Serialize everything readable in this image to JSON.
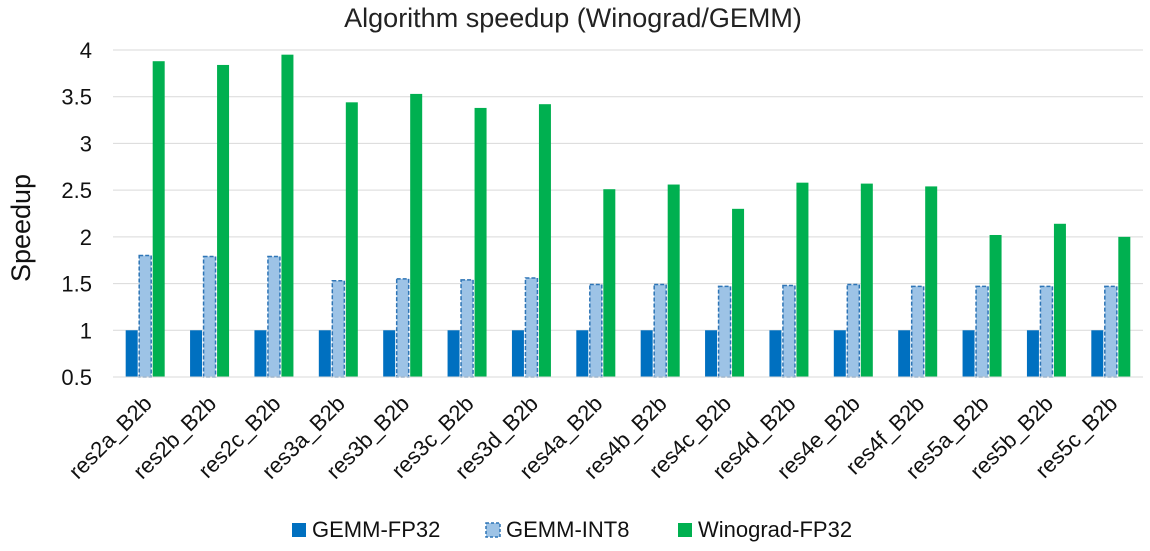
{
  "chart_data": {
    "type": "bar",
    "title": "Algorithm speedup (Winograd/GEMM)",
    "xlabel": "",
    "ylabel": "Speedup",
    "ylim": [
      0.5,
      4
    ],
    "yticks": [
      0.5,
      1,
      1.5,
      2,
      2.5,
      3,
      3.5,
      4
    ],
    "grid": true,
    "legend_position": "bottom",
    "categories": [
      "res2a_B2b",
      "res2b_B2b",
      "res2c_B2b",
      "res3a_B2b",
      "res3b_B2b",
      "res3c_B2b",
      "res3d_B2b",
      "res4a_B2b",
      "res4b_B2b",
      "res4c_B2b",
      "res4d_B2b",
      "res4e_B2b",
      "res4f_B2b",
      "res5a_B2b",
      "res5b_B2b",
      "res5c_B2b"
    ],
    "series": [
      {
        "name": "GEMM-FP32",
        "color": "#0070C0",
        "style": "solid",
        "values": [
          1,
          1,
          1,
          1,
          1,
          1,
          1,
          1,
          1,
          1,
          1,
          1,
          1,
          1,
          1,
          1
        ]
      },
      {
        "name": "GEMM-INT8",
        "color": "#9DC3E6",
        "style": "dashed",
        "values": [
          1.8,
          1.79,
          1.79,
          1.53,
          1.55,
          1.54,
          1.56,
          1.49,
          1.49,
          1.47,
          1.48,
          1.49,
          1.47,
          1.47,
          1.47,
          1.47
        ]
      },
      {
        "name": "Winograd-FP32",
        "color": "#00B050",
        "style": "solid",
        "values": [
          3.88,
          3.84,
          3.95,
          3.44,
          3.53,
          3.38,
          3.42,
          2.51,
          2.56,
          2.3,
          2.58,
          2.57,
          2.54,
          2.02,
          2.14,
          2.0
        ]
      }
    ]
  }
}
